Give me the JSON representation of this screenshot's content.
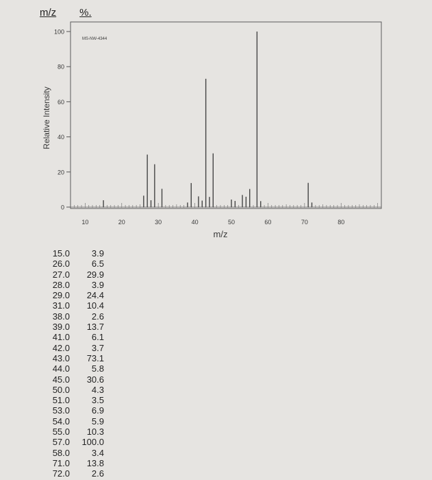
{
  "header": {
    "mz_label": "m/z",
    "pct_label": "%."
  },
  "chart_data": {
    "type": "bar",
    "title": "MS-NW-4344",
    "xlabel": "m/z",
    "ylabel": "Relative Intensity",
    "xlim": [
      6,
      91
    ],
    "ylim": [
      0,
      100
    ],
    "x_ticks": [
      "10",
      "20",
      "30",
      "40",
      "50",
      "60",
      "70",
      "80"
    ],
    "y_ticks": [
      "0",
      "20",
      "40",
      "60",
      "80",
      "100"
    ],
    "x": [
      15,
      26,
      27,
      28,
      29,
      31,
      38,
      39,
      41,
      42,
      43,
      44,
      45,
      50,
      51,
      53,
      54,
      55,
      57,
      58,
      71,
      72
    ],
    "values": [
      3.9,
      6.5,
      29.9,
      3.9,
      24.4,
      10.4,
      2.6,
      13.7,
      6.1,
      3.7,
      73.1,
      5.8,
      30.6,
      4.3,
      3.5,
      6.9,
      5.9,
      10.3,
      100.0,
      3.4,
      13.8,
      2.6
    ]
  },
  "peak_table": [
    {
      "mz": "15.0",
      "pct": "3.9"
    },
    {
      "mz": "26.0",
      "pct": "6.5"
    },
    {
      "mz": "27.0",
      "pct": "29.9"
    },
    {
      "mz": "28.0",
      "pct": "3.9"
    },
    {
      "mz": "29.0",
      "pct": "24.4"
    },
    {
      "mz": "31.0",
      "pct": "10.4"
    },
    {
      "mz": "38.0",
      "pct": "2.6"
    },
    {
      "mz": "39.0",
      "pct": "13.7"
    },
    {
      "mz": "41.0",
      "pct": "6.1"
    },
    {
      "mz": "42.0",
      "pct": "3.7"
    },
    {
      "mz": "43.0",
      "pct": "73.1"
    },
    {
      "mz": "44.0",
      "pct": "5.8"
    },
    {
      "mz": "45.0",
      "pct": "30.6"
    },
    {
      "mz": "50.0",
      "pct": "4.3"
    },
    {
      "mz": "51.0",
      "pct": "3.5"
    },
    {
      "mz": "53.0",
      "pct": "6.9"
    },
    {
      "mz": "54.0",
      "pct": "5.9"
    },
    {
      "mz": "55.0",
      "pct": "10.3"
    },
    {
      "mz": "57.0",
      "pct": "100.0"
    },
    {
      "mz": "58.0",
      "pct": "3.4"
    },
    {
      "mz": "71.0",
      "pct": "13.8"
    },
    {
      "mz": "72.0",
      "pct": "2.6"
    }
  ]
}
